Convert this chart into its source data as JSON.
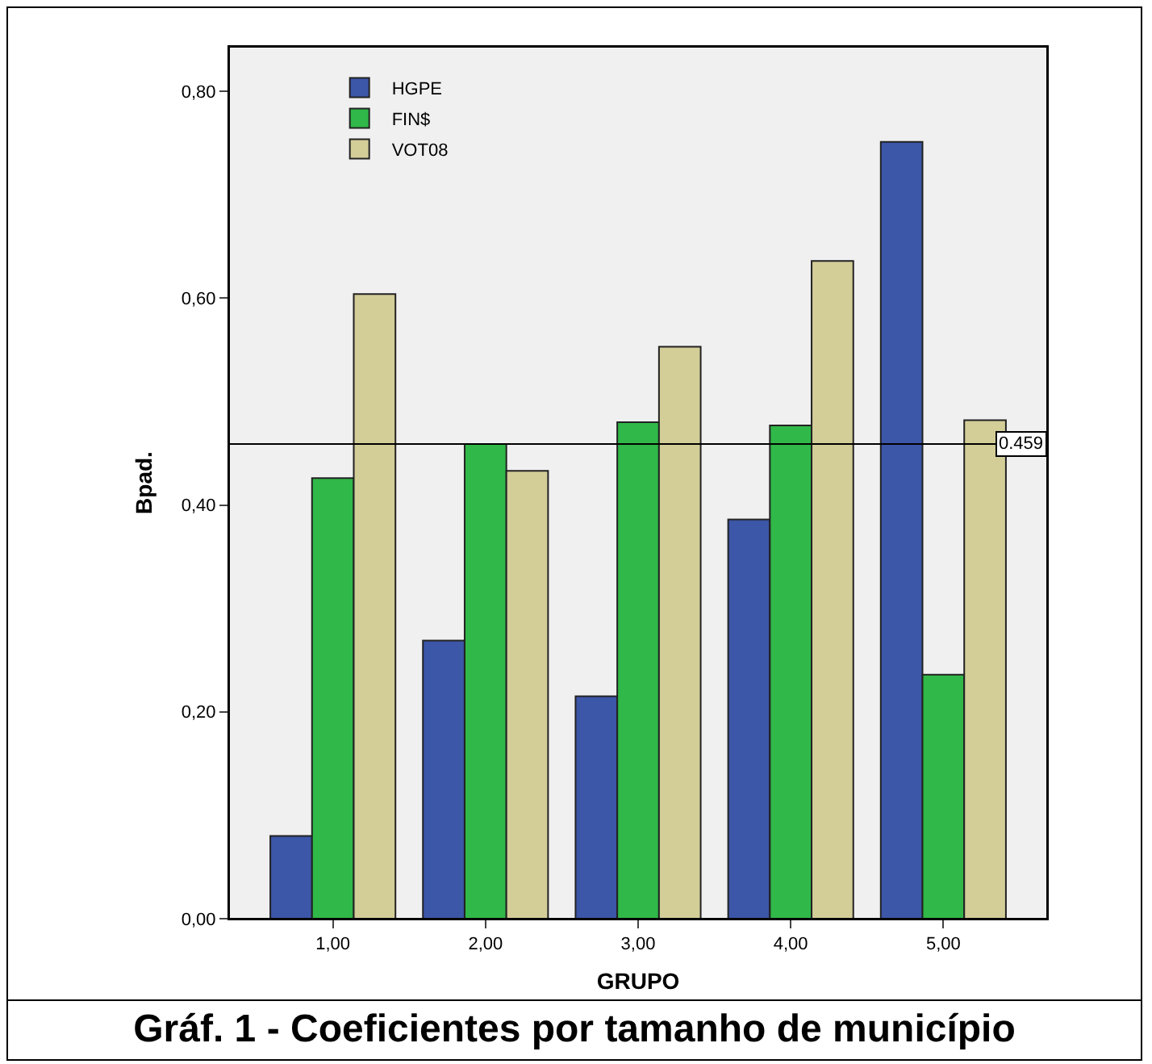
{
  "chart_data": {
    "type": "bar",
    "xlabel": "GRUPO",
    "ylabel": "Bpad.",
    "categories": [
      "1,00",
      "2,00",
      "3,00",
      "4,00",
      "5,00"
    ],
    "series": [
      {
        "name": "HGPE",
        "color": "#3c56a8",
        "values": [
          0.08,
          0.269,
          0.215,
          0.386,
          0.751
        ]
      },
      {
        "name": "FIN$",
        "color": "#30b848",
        "values": [
          0.426,
          0.459,
          0.48,
          0.477,
          0.236
        ]
      },
      {
        "name": "VOT08",
        "color": "#d3cd98",
        "values": [
          0.604,
          0.433,
          0.553,
          0.636,
          0.482
        ]
      }
    ],
    "ylim": [
      0,
      0.843
    ],
    "yticks": [
      {
        "value": 0,
        "label": "0,00"
      },
      {
        "value": 0.2,
        "label": "0,20"
      },
      {
        "value": 0.4,
        "label": "0,40"
      },
      {
        "value": 0.6,
        "label": "0,60"
      },
      {
        "value": 0.8,
        "label": "0,80"
      }
    ],
    "ref_lines": [
      {
        "axis": "y",
        "value": 0.459,
        "label": "0.459",
        "color": "#000000"
      }
    ],
    "grid": false,
    "legend": "top left",
    "annotations": [
      "Gráf. 1 - Coeficientes por tamanho de município"
    ]
  }
}
